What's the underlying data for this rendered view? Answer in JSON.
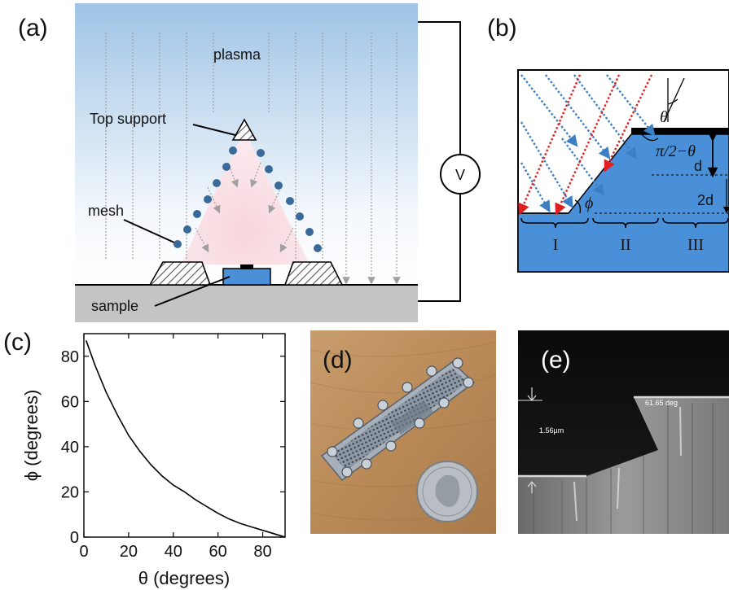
{
  "panels": {
    "a": {
      "label": "(a)",
      "plasma": "plasma",
      "top_support": "Top support",
      "mesh": "mesh",
      "sample": "sample",
      "voltage": "V"
    },
    "b": {
      "label": "(b)",
      "theta": "θ",
      "pi2_theta": "π/2−θ",
      "d": "d",
      "two_d": "2d",
      "phi": "ϕ",
      "regions": [
        "I",
        "II",
        "III"
      ]
    },
    "c": {
      "label": "(c)"
    },
    "d": {
      "label": "(d)"
    },
    "e": {
      "label": "(e)",
      "angle_readout": "61.65 deg",
      "thickness_readout": "1.56µm"
    }
  },
  "colors": {
    "sky_top": "#9fc4e6",
    "mesh_dots": "#3a6a9a",
    "sample_blue": "#4a90d9",
    "ion_blue": "#3d7fc4",
    "ion_red": "#e02020"
  },
  "chart_data": {
    "type": "line",
    "xlabel": "θ (degrees)",
    "ylabel": "ϕ (degrees)",
    "xlim": [
      0,
      90
    ],
    "ylim": [
      0,
      90
    ],
    "xticks": [
      0,
      20,
      40,
      60,
      80
    ],
    "yticks": [
      0,
      20,
      40,
      60,
      80
    ],
    "series": [
      {
        "x": [
          1,
          5,
          10,
          15,
          20,
          25,
          30,
          35,
          40,
          45,
          50,
          55,
          60,
          65,
          70,
          75,
          80,
          85,
          90
        ],
        "values": [
          87,
          76,
          64,
          54,
          45,
          38,
          32,
          27,
          23,
          20,
          16.5,
          13.5,
          10.5,
          8,
          6,
          4.5,
          3,
          1.5,
          0
        ]
      }
    ]
  }
}
